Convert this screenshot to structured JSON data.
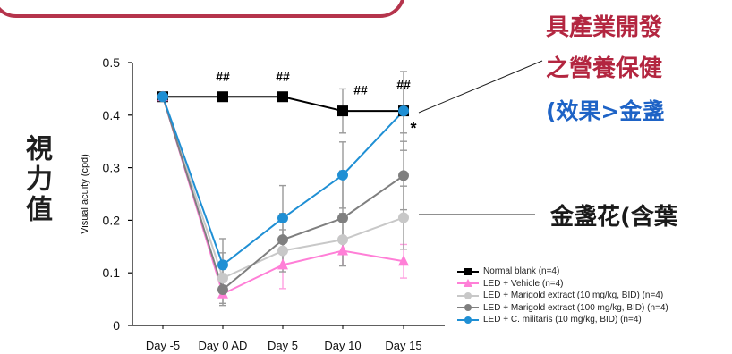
{
  "chart_data": {
    "type": "line",
    "title": "",
    "ylabel": "Visual acuity (cpd)",
    "xlabel": "",
    "categories": [
      "Day -5",
      "Day 0 AD",
      "Day 5",
      "Day 10",
      "Day 15"
    ],
    "ylim": [
      0,
      0.5
    ],
    "yticks": [
      "0",
      "0.1",
      "0.2",
      "0.3",
      "0.4",
      "0.5"
    ],
    "grid": false,
    "legend_position": "bottom-right",
    "series": [
      {
        "name": "Normal blank (n=4)",
        "color": "#000000",
        "marker": "square",
        "values": [
          0.435,
          0.435,
          0.435,
          0.408,
          0.408
        ],
        "errors": [
          0,
          0,
          0,
          0.042,
          0.042
        ]
      },
      {
        "name": "LED + Vehicle (n=4)",
        "color": "#ff7fd7",
        "marker": "triangle",
        "values": [
          0.435,
          0.06,
          0.115,
          0.142,
          0.122
        ],
        "errors": [
          0,
          0,
          0.045,
          0.028,
          0.032
        ]
      },
      {
        "name": "LED + Marigold  extract (10 mg/kg, BID) (n=4)",
        "color": "#c8c8c8",
        "marker": "circle",
        "values": [
          0.435,
          0.09,
          0.142,
          0.163,
          0.205
        ],
        "errors": [
          0,
          0.048,
          0.04,
          0.05,
          0.06
        ]
      },
      {
        "name": "LED + Marigold extract (100 mg/kg, BID) (n=4)",
        "color": "#7f7f7f",
        "marker": "circle",
        "values": [
          0.435,
          0.068,
          0.163,
          0.204,
          0.285
        ],
        "errors": [
          0,
          0.03,
          0.05,
          0.09,
          0.065
        ]
      },
      {
        "name": "LED + C. militaris (10 mg/kg, BID) (n=4)",
        "color": "#1f8fd4",
        "marker": "circle",
        "values": [
          0.435,
          0.115,
          0.204,
          0.286,
          0.408
        ],
        "errors": [
          0,
          0.05,
          0.062,
          0.063,
          0.075
        ]
      }
    ],
    "annotations": [
      {
        "text": "##",
        "category": "Day 0 AD",
        "value": 0.465
      },
      {
        "text": "##",
        "category": "Day 5",
        "value": 0.465
      },
      {
        "text": "##",
        "category": "Day 10",
        "value": 0.44
      },
      {
        "text": "##",
        "category": "Day 15",
        "value": 0.45
      },
      {
        "text": "*",
        "category": "Day 15",
        "value": 0.385
      }
    ]
  },
  "side_label": "視力值",
  "callouts": {
    "line1": "具產業開發",
    "line2": "之營養保健",
    "line3": "(效果>金盞",
    "marigold": "金盞花(含葉"
  }
}
